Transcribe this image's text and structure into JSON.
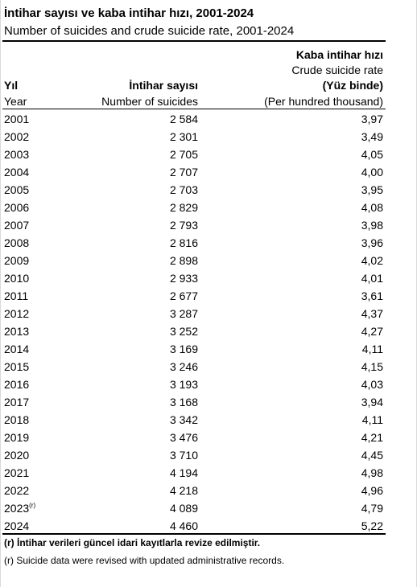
{
  "title_tr": "İntihar sayısı ve kaba intihar hızı, 2001-2024",
  "title_en": "Number of suicides and crude suicide rate, 2001-2024",
  "headers": {
    "year_tr": "Yıl",
    "year_en": "Year",
    "count_tr": "İntihar sayısı",
    "count_en": "Number of suicides",
    "rate_tr": "Kaba intihar hızı",
    "rate_en": "Crude suicide rate",
    "rate_unit_tr": "(Yüz binde)",
    "rate_unit_en": "(Per hundred thousand)"
  },
  "rows": [
    {
      "year": "2001",
      "count": "2 584",
      "rate": "3,97"
    },
    {
      "year": "2002",
      "count": "2 301",
      "rate": "3,49"
    },
    {
      "year": "2003",
      "count": "2 705",
      "rate": "4,05"
    },
    {
      "year": "2004",
      "count": "2 707",
      "rate": "4,00"
    },
    {
      "year": "2005",
      "count": "2 703",
      "rate": "3,95"
    },
    {
      "year": "2006",
      "count": "2 829",
      "rate": "4,08"
    },
    {
      "year": "2007",
      "count": "2 793",
      "rate": "3,98"
    },
    {
      "year": "2008",
      "count": "2 816",
      "rate": "3,96"
    },
    {
      "year": "2009",
      "count": "2 898",
      "rate": "4,02"
    },
    {
      "year": "2010",
      "count": "2 933",
      "rate": "4,01"
    },
    {
      "year": "2011",
      "count": "2 677",
      "rate": "3,61"
    },
    {
      "year": "2012",
      "count": "3 287",
      "rate": "4,37"
    },
    {
      "year": "2013",
      "count": "3 252",
      "rate": "4,27"
    },
    {
      "year": "2014",
      "count": "3 169",
      "rate": "4,11"
    },
    {
      "year": "2015",
      "count": "3 246",
      "rate": "4,15"
    },
    {
      "year": "2016",
      "count": "3 193",
      "rate": "4,03"
    },
    {
      "year": "2017",
      "count": "3 168",
      "rate": "3,94"
    },
    {
      "year": "2018",
      "count": "3 342",
      "rate": "4,11"
    },
    {
      "year": "2019",
      "count": "3 476",
      "rate": "4,21"
    },
    {
      "year": "2020",
      "count": "3 710",
      "rate": "4,45"
    },
    {
      "year": "2021",
      "count": "4 194",
      "rate": "4,98"
    },
    {
      "year": "2022",
      "count": "4 218",
      "rate": "4,96"
    },
    {
      "year": "2023",
      "year_mark": "(r)",
      "count": "4 089",
      "rate": "4,79"
    },
    {
      "year": "2024",
      "count": "4 460",
      "rate": "5,22"
    }
  ],
  "notes": {
    "tr": "(r) İntihar verileri güncel idari kayıtlarla revize edilmiştir.",
    "en": "(r) Suicide data were revised with updated administrative records."
  }
}
